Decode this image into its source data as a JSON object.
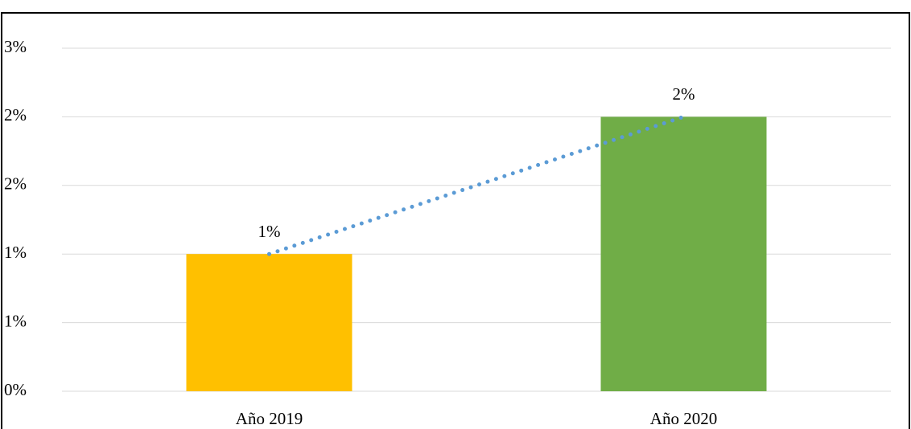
{
  "chart_data": {
    "type": "bar",
    "categories": [
      "Año 2019",
      "Año 2020"
    ],
    "values": [
      1,
      2
    ],
    "value_labels": [
      "1%",
      "2%"
    ],
    "colors": [
      "#ffc000",
      "#70ad47"
    ],
    "trendline": {
      "color": "#5b9bd5",
      "style": "dotted"
    },
    "ylim": [
      0,
      2.5
    ],
    "yticks": [
      {
        "value": 0,
        "label": "0%"
      },
      {
        "value": 0.5,
        "label": "1%"
      },
      {
        "value": 1,
        "label": "1%"
      },
      {
        "value": 1.5,
        "label": "2%"
      },
      {
        "value": 2,
        "label": "2%"
      },
      {
        "value": 2.5,
        "label": "3%"
      }
    ],
    "grid": true
  }
}
